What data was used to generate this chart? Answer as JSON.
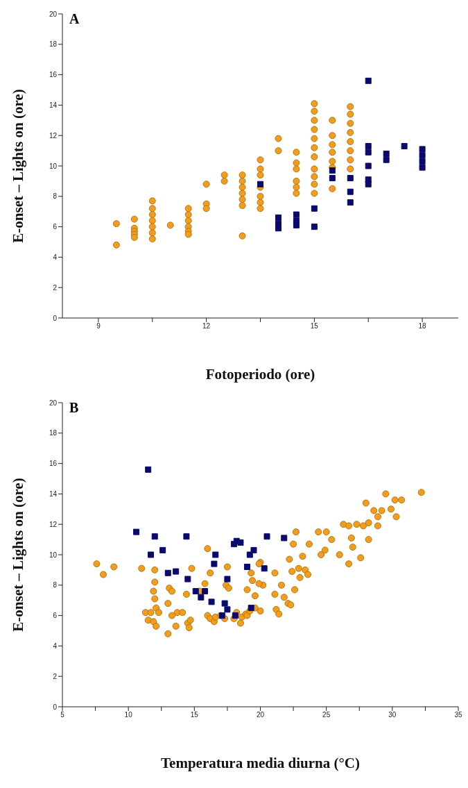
{
  "chart_data": [
    {
      "type": "scatter",
      "title": "A",
      "xlabel": "Fotoperiodo (ore)",
      "ylabel": "E-onset – Lights on (ore)",
      "xlim": [
        8,
        19
      ],
      "xticks": [
        9,
        {
          "value": 10.5,
          "label": null
        },
        12,
        {
          "value": 13.5,
          "label": null
        },
        15,
        {
          "value": 16.5,
          "label": null
        },
        18
      ],
      "ylim": [
        0,
        20
      ],
      "yticks": [
        0,
        2,
        4,
        6,
        8,
        10,
        12,
        14,
        16,
        18,
        20
      ],
      "grid": false,
      "legend": false,
      "series": [
        {
          "color": "#f39c1e",
          "marker": "circle",
          "x": [
            9.5,
            9.5,
            10,
            10,
            10,
            10,
            10,
            10.5,
            10.5,
            10.5,
            10.5,
            10.5,
            10.5,
            10.5,
            11,
            11.5,
            11.5,
            11.5,
            11.5,
            11.5,
            11.5,
            12,
            12,
            12,
            12.5,
            12.5,
            13,
            13,
            13,
            13,
            13,
            13,
            13,
            13.5,
            13.5,
            13.5,
            13.5,
            13.5,
            13.5,
            13.5,
            14,
            14,
            14.5,
            14.5,
            14.5,
            14.5,
            14.5,
            14.5,
            15,
            15,
            15,
            15,
            15,
            15,
            15,
            15,
            15,
            15,
            15,
            15.5,
            15.5,
            15.5,
            15.5,
            15.5,
            15.5,
            15.5,
            16,
            16,
            16,
            16,
            16,
            16,
            16,
            16
          ],
          "values": [
            6.2,
            4.8,
            6.5,
            5.9,
            5.7,
            5.5,
            5.3,
            7.7,
            7.2,
            6.8,
            6.4,
            6.0,
            5.6,
            5.2,
            6.1,
            7.2,
            6.8,
            6.4,
            6.0,
            5.7,
            5.5,
            8.8,
            7.5,
            7.2,
            9.4,
            9.0,
            9.4,
            9.0,
            8.6,
            8.2,
            7.8,
            7.4,
            5.4,
            10.4,
            9.8,
            9.4,
            8.6,
            8.0,
            7.6,
            7.2,
            11.8,
            11.0,
            10.9,
            10.2,
            9.8,
            9.0,
            8.6,
            8.2,
            14.1,
            13.6,
            13.0,
            12.4,
            11.8,
            11.2,
            10.6,
            9.8,
            9.3,
            8.8,
            8.2,
            13.0,
            12.0,
            11.4,
            10.9,
            10.3,
            9.9,
            8.5,
            13.9,
            13.4,
            12.8,
            12.2,
            11.6,
            11.0,
            10.4,
            9.8
          ]
        },
        {
          "color": "#0a0a6e",
          "marker": "square",
          "x": [
            13.5,
            14,
            14,
            14,
            14.5,
            14.5,
            14.5,
            15,
            15,
            15.5,
            15.5,
            16,
            16,
            16,
            16.5,
            16.5,
            16.5,
            16.5,
            16.5,
            16.5,
            17,
            17,
            17.5,
            18,
            18,
            18,
            18
          ],
          "values": [
            8.8,
            6.6,
            6.2,
            5.9,
            6.8,
            6.4,
            6.1,
            7.2,
            6.0,
            9.7,
            9.2,
            9.2,
            8.3,
            7.6,
            15.6,
            11.3,
            10.9,
            10.0,
            9.1,
            8.8,
            10.8,
            10.4,
            11.3,
            11.1,
            10.7,
            10.3,
            9.9
          ]
        }
      ]
    },
    {
      "type": "scatter",
      "title": "B",
      "xlabel": "Temperatura media diurna (°C)",
      "ylabel": "E-onset – Lights on (ore)",
      "xlim": [
        5,
        35
      ],
      "xticks": [
        5,
        {
          "value": 7.5,
          "label": null
        },
        10,
        {
          "value": 12.5,
          "label": null
        },
        15,
        {
          "value": 17.5,
          "label": null
        },
        20,
        {
          "value": 22.5,
          "label": null
        },
        25,
        {
          "value": 27.5,
          "label": null
        },
        30,
        {
          "value": 32.5,
          "label": null
        },
        35
      ],
      "ylim": [
        0,
        20
      ],
      "yticks": [
        0,
        2,
        4,
        6,
        8,
        10,
        12,
        14,
        16,
        18,
        20
      ],
      "grid": false,
      "legend": false,
      "series": [
        {
          "color": "#f39c1e",
          "marker": "circle",
          "x": [
            7.6,
            8.1,
            8.9,
            11.0,
            11.3,
            11.5,
            11.7,
            11.9,
            12.1,
            12.0,
            12.0,
            11.9,
            12.0,
            12.1,
            12.3,
            13.1,
            13.3,
            13.0,
            13.3,
            13.7,
            13.0,
            13.6,
            14.1,
            14.4,
            14.5,
            14.6,
            14.7,
            14.8,
            15.4,
            15.8,
            16.0,
            16.2,
            16.0,
            16.2,
            16.5,
            16.6,
            17.0,
            17.4,
            17.6,
            17.5,
            17.3,
            18.0,
            18.5,
            18.2,
            18.6,
            18.9,
            19.0,
            19.0,
            19.2,
            19.3,
            19.4,
            19.6,
            20.0,
            20.2,
            19.9,
            19.9,
            19.6,
            20.0,
            21.1,
            21.1,
            21.2,
            21.4,
            21.6,
            21.8,
            22.1,
            22.3,
            22.2,
            22.5,
            22.7,
            22.4,
            22.6,
            22.9,
            23.0,
            23.2,
            23.4,
            23.6,
            23.7,
            24.4,
            24.6,
            24.9,
            25.0,
            25.4,
            26.0,
            26.3,
            26.7,
            26.7,
            26.9,
            27.0,
            27.3,
            27.6,
            27.8,
            28.0,
            28.2,
            28.2,
            28.6,
            28.9,
            28.9,
            29.2,
            29.5,
            29.9,
            30.2,
            30.3,
            30.7,
            32.2
          ],
          "values": [
            9.4,
            8.7,
            9.2,
            9.1,
            6.2,
            5.7,
            6.2,
            5.6,
            5.3,
            9.0,
            8.2,
            7.6,
            7.1,
            6.5,
            6.2,
            7.8,
            7.6,
            6.8,
            6.0,
            6.2,
            4.8,
            5.3,
            6.2,
            7.4,
            5.5,
            5.2,
            5.7,
            9.1,
            7.6,
            8.1,
            10.4,
            8.8,
            6.0,
            5.8,
            5.6,
            5.9,
            6.0,
            8.0,
            7.8,
            9.2,
            5.8,
            5.8,
            5.5,
            6.2,
            5.9,
            6.1,
            7.7,
            6.0,
            6.3,
            8.8,
            8.3,
            7.3,
            9.5,
            8.0,
            9.4,
            8.1,
            6.5,
            6.3,
            8.8,
            7.4,
            6.4,
            6.1,
            8.0,
            7.2,
            6.8,
            6.7,
            9.7,
            10.7,
            11.5,
            8.9,
            7.7,
            9.1,
            8.5,
            9.9,
            9.0,
            8.7,
            10.7,
            11.5,
            10.0,
            10.3,
            11.5,
            11.0,
            10.0,
            12.0,
            11.9,
            9.4,
            11.1,
            10.5,
            12.0,
            9.8,
            11.9,
            13.4,
            12.1,
            11.0,
            12.9,
            11.9,
            12.5,
            12.9,
            14.0,
            13.0,
            13.6,
            12.5,
            13.6,
            14.1
          ]
        },
        {
          "color": "#0a0a6e",
          "marker": "square",
          "x": [
            11.5,
            10.6,
            12.0,
            11.7,
            12.6,
            13.0,
            13.6,
            14.4,
            14.5,
            15.1,
            15.5,
            15.8,
            16.3,
            16.5,
            16.6,
            17.1,
            17.3,
            17.5,
            17.5,
            18.0,
            18.2,
            18.5,
            18.1,
            19.0,
            19.2,
            19.5,
            19.3,
            20.5,
            21.8,
            20.3
          ],
          "values": [
            15.6,
            11.5,
            11.2,
            10.0,
            10.3,
            8.8,
            8.9,
            11.2,
            8.4,
            7.6,
            7.2,
            7.6,
            6.9,
            9.4,
            10.0,
            6.0,
            6.8,
            6.4,
            8.4,
            10.7,
            10.9,
            10.8,
            6.0,
            9.2,
            10.0,
            10.3,
            6.5,
            11.2,
            11.1,
            9.1
          ]
        }
      ]
    }
  ]
}
